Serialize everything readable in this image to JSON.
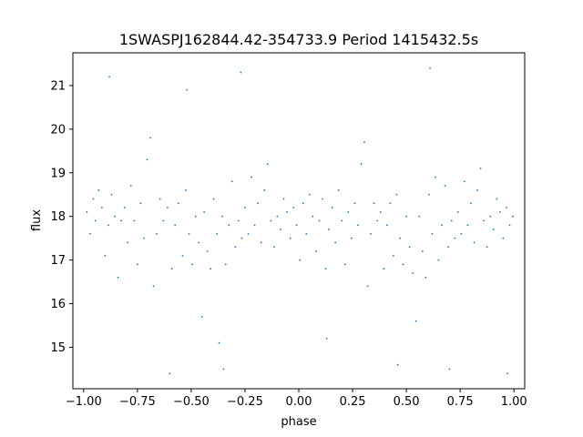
{
  "chart_data": {
    "type": "scatter",
    "title": "1SWASPJ162844.42-354733.9 Period 1415432.5s",
    "xlabel": "phase",
    "ylabel": "flux",
    "xlim": [
      -1.05,
      1.05
    ],
    "ylim": [
      14.05,
      21.75
    ],
    "xticks": [
      -1.0,
      -0.75,
      -0.5,
      -0.25,
      0.0,
      0.25,
      0.5,
      0.75,
      1.0
    ],
    "xtick_labels": [
      "−1.00",
      "−0.75",
      "−0.50",
      "−0.25",
      "0.00",
      "0.25",
      "0.50",
      "0.75",
      "1.00"
    ],
    "yticks": [
      15,
      16,
      17,
      18,
      19,
      20,
      21
    ],
    "ytick_labels": [
      "15",
      "16",
      "17",
      "18",
      "19",
      "20",
      "21"
    ],
    "grid": false,
    "marker_color": "#1f77b4",
    "series": [
      {
        "points": [
          [
            -0.985,
            18.1
          ],
          [
            -0.97,
            17.6
          ],
          [
            -0.955,
            18.4
          ],
          [
            -0.945,
            17.9
          ],
          [
            -0.93,
            18.6
          ],
          [
            -0.915,
            18.2
          ],
          [
            -0.9,
            17.1
          ],
          [
            -0.885,
            17.8
          ],
          [
            -0.87,
            18.5
          ],
          [
            -0.855,
            18.0
          ],
          [
            -0.84,
            16.6
          ],
          [
            -0.825,
            17.9
          ],
          [
            -0.81,
            18.2
          ],
          [
            -0.795,
            17.4
          ],
          [
            -0.78,
            18.7
          ],
          [
            -0.765,
            17.9
          ],
          [
            -0.75,
            16.9
          ],
          [
            -0.735,
            18.3
          ],
          [
            -0.72,
            17.5
          ],
          [
            -0.705,
            19.3
          ],
          [
            -0.69,
            19.8
          ],
          [
            -0.675,
            16.4
          ],
          [
            -0.66,
            17.6
          ],
          [
            -0.645,
            18.4
          ],
          [
            -0.63,
            17.9
          ],
          [
            -0.61,
            18.2
          ],
          [
            -0.59,
            16.8
          ],
          [
            -0.575,
            17.8
          ],
          [
            -0.56,
            18.3
          ],
          [
            -0.54,
            17.1
          ],
          [
            -0.525,
            18.6
          ],
          [
            -0.51,
            17.6
          ],
          [
            -0.495,
            16.9
          ],
          [
            -0.48,
            18.0
          ],
          [
            -0.465,
            17.4
          ],
          [
            -0.45,
            15.7
          ],
          [
            -0.44,
            18.1
          ],
          [
            -0.425,
            17.2
          ],
          [
            -0.41,
            16.8
          ],
          [
            -0.395,
            18.4
          ],
          [
            -0.38,
            17.6
          ],
          [
            -0.37,
            15.1
          ],
          [
            -0.355,
            18.0
          ],
          [
            -0.34,
            16.9
          ],
          [
            -0.325,
            17.8
          ],
          [
            -0.31,
            18.8
          ],
          [
            -0.295,
            17.3
          ],
          [
            -0.28,
            17.9
          ],
          [
            -0.265,
            17.5
          ],
          [
            -0.25,
            18.2
          ],
          [
            -0.235,
            17.6
          ],
          [
            -0.22,
            18.9
          ],
          [
            -0.205,
            17.8
          ],
          [
            -0.19,
            18.3
          ],
          [
            -0.175,
            17.4
          ],
          [
            -0.16,
            18.6
          ],
          [
            -0.145,
            19.2
          ],
          [
            -0.13,
            17.9
          ],
          [
            -0.115,
            17.3
          ],
          [
            -0.1,
            18.0
          ],
          [
            -0.085,
            17.7
          ],
          [
            -0.07,
            18.4
          ],
          [
            -0.055,
            18.1
          ],
          [
            -0.04,
            17.5
          ],
          [
            -0.025,
            18.2
          ],
          [
            -0.01,
            17.8
          ],
          [
            0.005,
            17.0
          ],
          [
            0.02,
            18.3
          ],
          [
            0.035,
            17.6
          ],
          [
            0.05,
            18.5
          ],
          [
            0.065,
            18.0
          ],
          [
            0.08,
            17.2
          ],
          [
            0.095,
            17.9
          ],
          [
            0.11,
            18.4
          ],
          [
            0.125,
            16.8
          ],
          [
            0.14,
            17.7
          ],
          [
            0.155,
            18.2
          ],
          [
            0.17,
            17.4
          ],
          [
            0.185,
            18.6
          ],
          [
            0.2,
            17.9
          ],
          [
            0.215,
            16.9
          ],
          [
            0.23,
            18.1
          ],
          [
            0.245,
            17.5
          ],
          [
            0.26,
            18.3
          ],
          [
            0.275,
            17.8
          ],
          [
            0.29,
            19.2
          ],
          [
            0.305,
            19.7
          ],
          [
            0.32,
            16.4
          ],
          [
            0.335,
            17.6
          ],
          [
            0.35,
            18.3
          ],
          [
            0.365,
            17.9
          ],
          [
            0.38,
            18.1
          ],
          [
            0.395,
            16.8
          ],
          [
            0.41,
            17.8
          ],
          [
            0.425,
            18.3
          ],
          [
            0.44,
            17.1
          ],
          [
            0.455,
            18.5
          ],
          [
            0.47,
            17.5
          ],
          [
            0.485,
            16.9
          ],
          [
            0.5,
            18.0
          ],
          [
            0.515,
            17.3
          ],
          [
            0.53,
            16.7
          ],
          [
            0.545,
            15.6
          ],
          [
            0.56,
            18.0
          ],
          [
            0.575,
            17.2
          ],
          [
            0.59,
            16.6
          ],
          [
            0.605,
            18.5
          ],
          [
            0.62,
            17.6
          ],
          [
            0.635,
            18.9
          ],
          [
            0.65,
            17.0
          ],
          [
            0.665,
            17.8
          ],
          [
            0.68,
            18.7
          ],
          [
            0.695,
            17.3
          ],
          [
            0.71,
            17.9
          ],
          [
            0.725,
            17.5
          ],
          [
            0.74,
            18.1
          ],
          [
            0.755,
            17.6
          ],
          [
            0.77,
            18.8
          ],
          [
            0.785,
            17.8
          ],
          [
            0.8,
            18.3
          ],
          [
            0.815,
            17.4
          ],
          [
            0.83,
            18.6
          ],
          [
            0.845,
            19.1
          ],
          [
            0.86,
            17.9
          ],
          [
            0.875,
            17.3
          ],
          [
            0.89,
            18.0
          ],
          [
            0.905,
            17.7
          ],
          [
            0.92,
            18.4
          ],
          [
            0.935,
            18.1
          ],
          [
            0.95,
            17.5
          ],
          [
            0.965,
            18.2
          ],
          [
            0.98,
            17.8
          ],
          [
            0.995,
            18.0
          ],
          [
            -0.88,
            21.2
          ],
          [
            -0.6,
            14.4
          ],
          [
            -0.35,
            14.5
          ],
          [
            -0.27,
            21.3
          ],
          [
            0.46,
            14.6
          ],
          [
            0.61,
            21.4
          ],
          [
            0.7,
            14.5
          ],
          [
            0.97,
            14.4
          ],
          [
            -0.52,
            20.9
          ],
          [
            0.13,
            15.2
          ]
        ]
      }
    ]
  }
}
